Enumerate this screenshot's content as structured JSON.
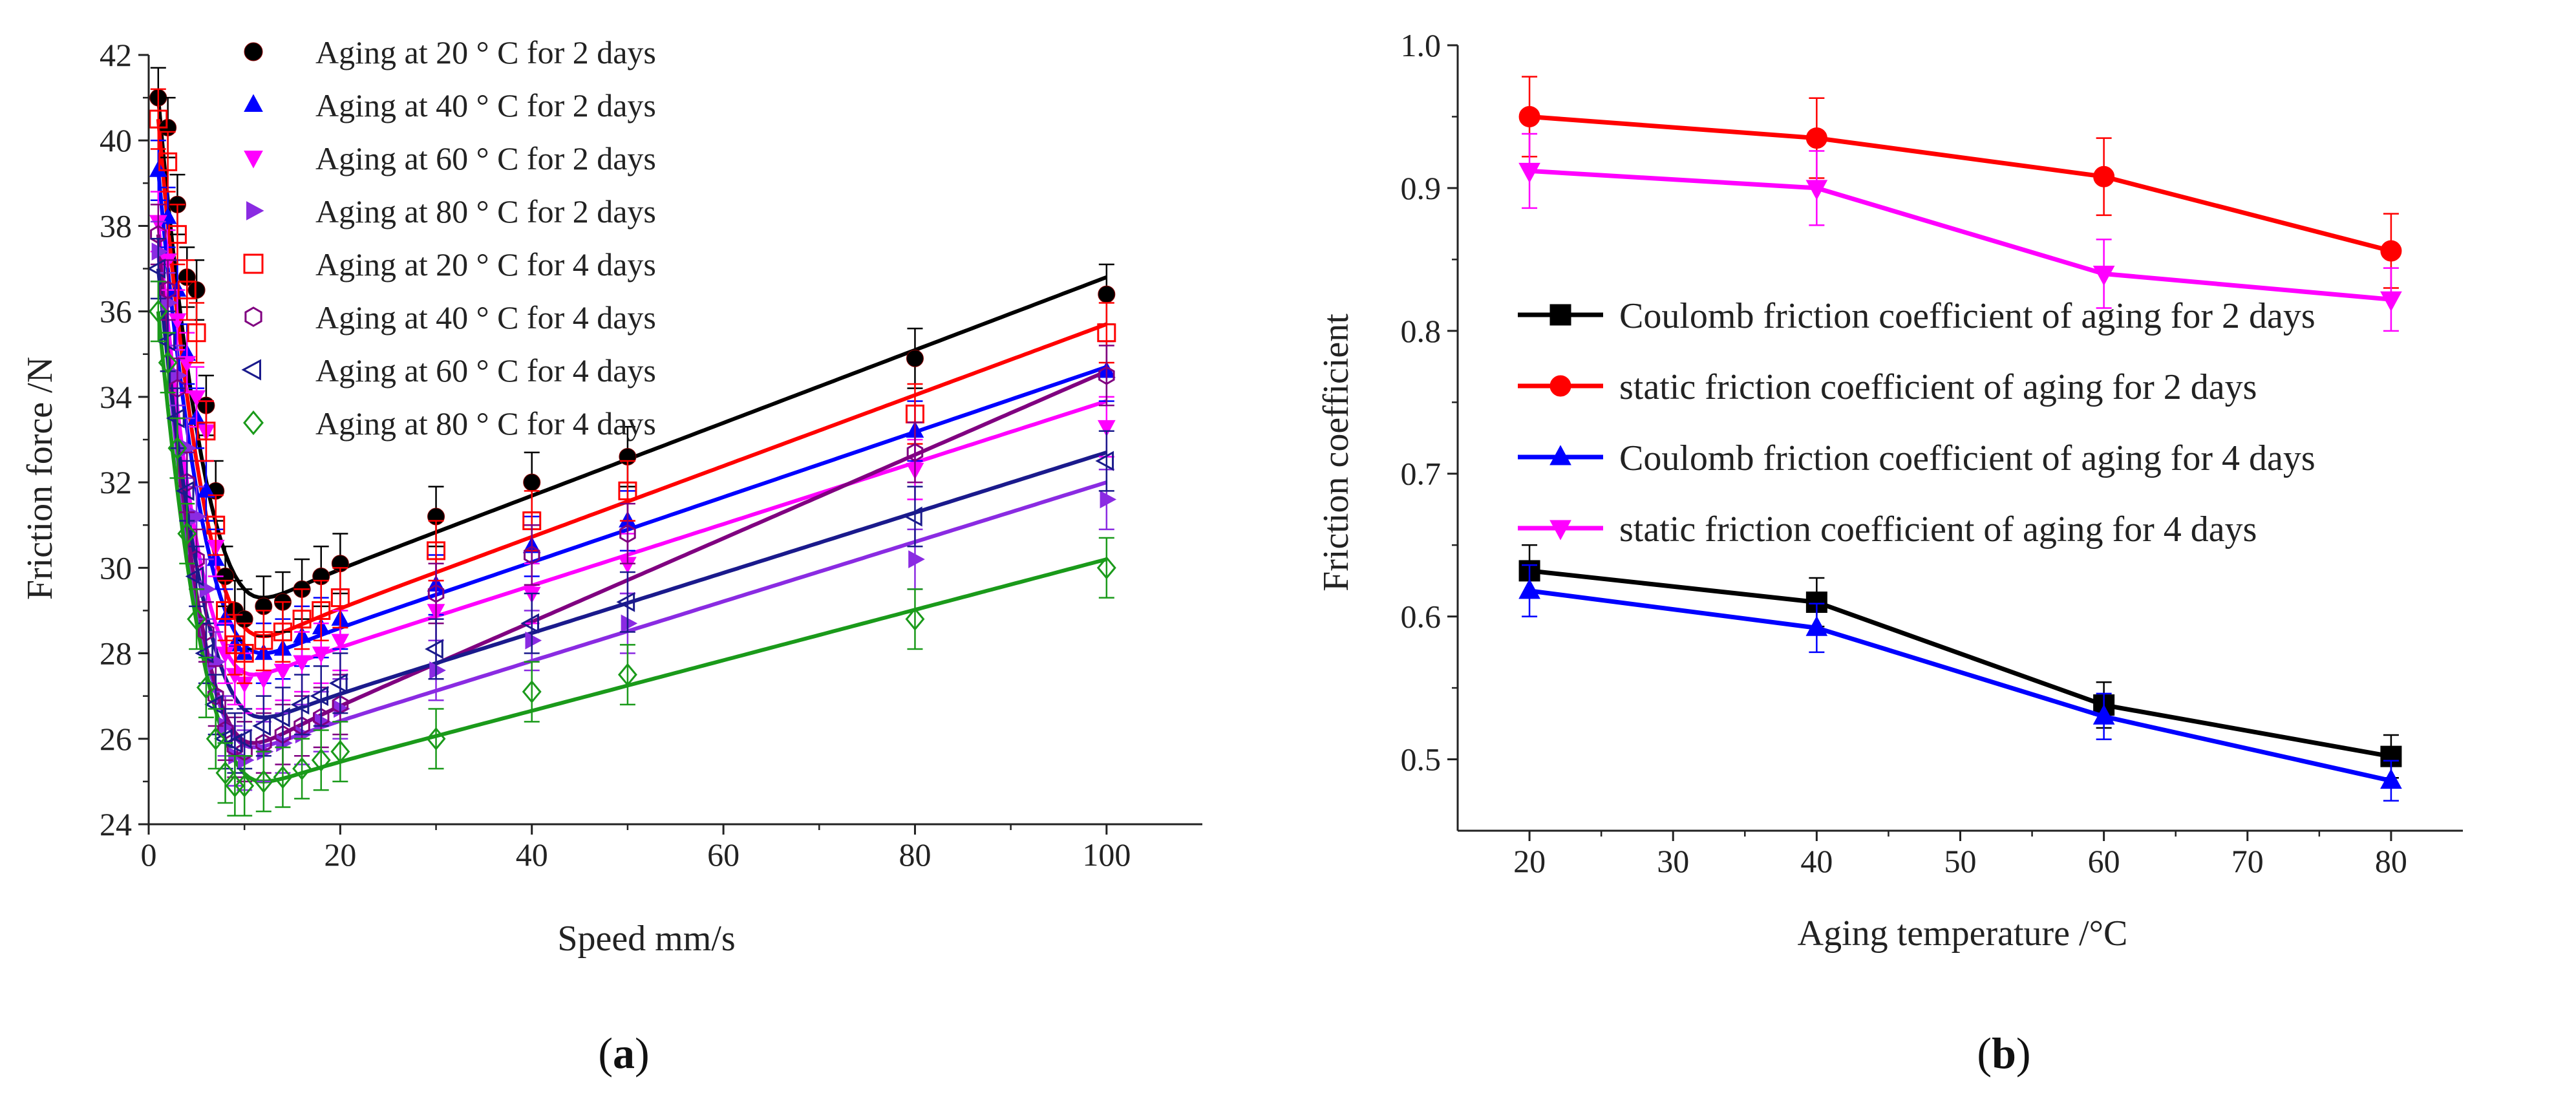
{
  "panels": {
    "a": {
      "caption_open": "(",
      "caption_letter": "a",
      "caption_close": ")"
    },
    "b": {
      "caption_open": "(",
      "caption_letter": "b",
      "caption_close": ")"
    }
  },
  "chart_data": [
    {
      "type": "scatter",
      "title": "",
      "xlabel": "Speed mm/s",
      "ylabel": "Friction force /N",
      "xlim": [
        0,
        110
      ],
      "ylim": [
        24,
        42
      ],
      "xticks": [
        0,
        20,
        40,
        60,
        80,
        100
      ],
      "yticks": [
        24,
        26,
        28,
        30,
        32,
        34,
        36,
        38,
        40,
        42
      ],
      "grid": false,
      "legend_position": "top-left",
      "fitted_curves": true,
      "series": [
        {
          "name": "Aging at 20 ° C for 2 days",
          "color": "#000000",
          "marker": "filled-circle",
          "x": [
            1,
            2,
            3,
            4,
            5,
            6,
            7,
            8,
            9,
            10,
            12,
            14,
            16,
            18,
            20,
            30,
            40,
            50,
            80,
            100
          ],
          "y": [
            41.0,
            40.3,
            38.5,
            36.8,
            36.5,
            33.8,
            31.8,
            29.8,
            29.0,
            28.8,
            29.1,
            29.2,
            29.5,
            29.8,
            30.1,
            31.2,
            32.0,
            32.6,
            34.9,
            36.4
          ],
          "fit_min": [
            12,
            29.3
          ],
          "fit_end": [
            100,
            36.8
          ]
        },
        {
          "name": "Aging at 40 ° C for 2 days",
          "color": "#0000ff",
          "marker": "filled-triangle-up",
          "x": [
            1,
            2,
            3,
            4,
            5,
            6,
            7,
            8,
            9,
            10,
            12,
            14,
            16,
            18,
            20,
            30,
            40,
            50,
            80,
            100
          ],
          "y": [
            39.3,
            38.2,
            36.5,
            35.0,
            33.5,
            31.8,
            30.2,
            28.8,
            28.2,
            28.0,
            28.0,
            28.1,
            28.4,
            28.6,
            28.8,
            29.6,
            30.5,
            31.1,
            33.2,
            34.6
          ],
          "fit_min": [
            12,
            28.0
          ],
          "fit_end": [
            100,
            34.7
          ]
        },
        {
          "name": "Aging at 60 ° C for 2 days",
          "color": "#ff00ff",
          "marker": "filled-triangle-down",
          "x": [
            1,
            2,
            3,
            4,
            5,
            6,
            7,
            8,
            9,
            10,
            12,
            14,
            16,
            18,
            20,
            30,
            40,
            50,
            80,
            100
          ],
          "y": [
            38.1,
            37.2,
            35.8,
            34.8,
            34.0,
            33.2,
            30.5,
            28.0,
            27.5,
            27.3,
            27.4,
            27.6,
            27.8,
            28.0,
            28.3,
            29.0,
            29.4,
            30.1,
            32.3,
            33.3
          ],
          "fit_min": [
            11,
            27.5
          ],
          "fit_end": [
            100,
            33.9
          ]
        },
        {
          "name": "Aging at 80 ° C for 2 days",
          "color": "#8a2be2",
          "marker": "filled-triangle-right",
          "x": [
            1,
            2,
            3,
            4,
            5,
            6,
            7,
            8,
            9,
            10,
            12,
            14,
            16,
            18,
            20,
            30,
            40,
            50,
            80,
            100
          ],
          "y": [
            37.4,
            36.2,
            34.5,
            32.8,
            31.2,
            29.5,
            27.8,
            26.3,
            25.6,
            25.5,
            25.7,
            25.9,
            26.1,
            26.4,
            26.7,
            27.6,
            28.3,
            28.7,
            30.2,
            31.6
          ],
          "fit_min": [
            11,
            25.8
          ],
          "fit_end": [
            100,
            32.0
          ]
        },
        {
          "name": "Aging at 20 ° C for 4 days",
          "color": "#ff0000",
          "marker": "open-square",
          "x": [
            1,
            2,
            3,
            4,
            5,
            6,
            7,
            8,
            9,
            10,
            12,
            14,
            16,
            18,
            20,
            30,
            40,
            50,
            80,
            100
          ],
          "y": [
            40.5,
            39.5,
            37.8,
            36.5,
            35.5,
            33.2,
            31.0,
            29.0,
            28.2,
            28.0,
            28.3,
            28.5,
            28.8,
            29.0,
            29.3,
            30.4,
            31.1,
            31.8,
            33.6,
            35.5
          ],
          "fit_min": [
            12,
            28.4
          ],
          "fit_end": [
            100,
            35.7
          ]
        },
        {
          "name": "Aging at 40 ° C for 4 days",
          "color": "#800080",
          "marker": "open-hexagon",
          "x": [
            1,
            2,
            3,
            4,
            5,
            6,
            7,
            8,
            9,
            10,
            12,
            14,
            16,
            18,
            20,
            30,
            40,
            50,
            80,
            100
          ],
          "y": [
            37.8,
            36.5,
            34.2,
            32.0,
            30.2,
            28.5,
            27.0,
            26.2,
            25.8,
            25.7,
            25.9,
            26.1,
            26.3,
            26.5,
            26.8,
            29.4,
            30.3,
            30.8,
            32.7,
            34.5
          ],
          "fit_min": [
            11,
            25.9
          ],
          "fit_end": [
            100,
            34.6
          ]
        },
        {
          "name": "Aging at 60 ° C for 4 days",
          "color": "#1a1a8c",
          "marker": "open-triangle-left",
          "x": [
            1,
            2,
            3,
            4,
            5,
            6,
            7,
            8,
            9,
            10,
            12,
            14,
            16,
            18,
            20,
            30,
            40,
            50,
            80,
            100
          ],
          "y": [
            37.0,
            35.3,
            33.5,
            31.8,
            29.8,
            28.0,
            26.8,
            26.0,
            25.9,
            26.0,
            26.3,
            26.5,
            26.8,
            27.0,
            27.3,
            28.1,
            28.7,
            29.2,
            31.2,
            32.5
          ],
          "fit_min": [
            12,
            26.5
          ],
          "fit_end": [
            100,
            32.7
          ]
        },
        {
          "name": "Aging at 80 ° C for 4 days",
          "color": "#1a9a1a",
          "marker": "open-diamond",
          "x": [
            1,
            2,
            3,
            4,
            5,
            6,
            7,
            8,
            9,
            10,
            12,
            14,
            16,
            18,
            20,
            30,
            40,
            50,
            80,
            100
          ],
          "y": [
            36.0,
            34.8,
            32.8,
            30.8,
            28.8,
            27.2,
            26.0,
            25.2,
            24.9,
            24.9,
            25.0,
            25.1,
            25.3,
            25.5,
            25.7,
            26.0,
            27.1,
            27.5,
            28.8,
            30.0
          ],
          "fit_min": [
            12,
            25.0
          ],
          "fit_end": [
            100,
            30.2
          ]
        }
      ]
    },
    {
      "type": "line",
      "title": "",
      "xlabel": "Aging temperature /°C",
      "ylabel": "Friction coefficient",
      "xlim": [
        15,
        85
      ],
      "ylim": [
        0.45,
        1.0
      ],
      "xticks": [
        20,
        30,
        40,
        50,
        60,
        70,
        80
      ],
      "yticks": [
        0.5,
        0.6,
        0.7,
        0.8,
        0.9,
        1.0
      ],
      "ytick_labels": [
        "0.5",
        "0.6",
        "0.7",
        "0.8",
        "0.9",
        "1.0"
      ],
      "grid": false,
      "legend_position": "center-left",
      "categories": [
        20,
        40,
        60,
        80
      ],
      "series": [
        {
          "name": "Coulomb friction coefficient of aging for 2 days",
          "color": "#000000",
          "marker": "filled-square",
          "values": [
            0.632,
            0.61,
            0.538,
            0.502
          ],
          "errors": [
            0.018,
            0.017,
            0.016,
            0.015
          ]
        },
        {
          "name": "static friction coefficient of aging for 2 days",
          "color": "#ff0000",
          "marker": "filled-circle",
          "values": [
            0.95,
            0.935,
            0.908,
            0.856
          ],
          "errors": [
            0.028,
            0.028,
            0.027,
            0.026
          ]
        },
        {
          "name": "Coulomb friction coefficient of aging for 4 days",
          "color": "#0000ff",
          "marker": "filled-triangle-up",
          "values": [
            0.618,
            0.592,
            0.53,
            0.485
          ],
          "errors": [
            0.018,
            0.017,
            0.016,
            0.014
          ]
        },
        {
          "name": "static friction coefficient of aging for 4 days",
          "color": "#ff00ff",
          "marker": "filled-triangle-down",
          "values": [
            0.912,
            0.9,
            0.84,
            0.822
          ],
          "errors": [
            0.026,
            0.026,
            0.024,
            0.022
          ]
        }
      ]
    }
  ]
}
